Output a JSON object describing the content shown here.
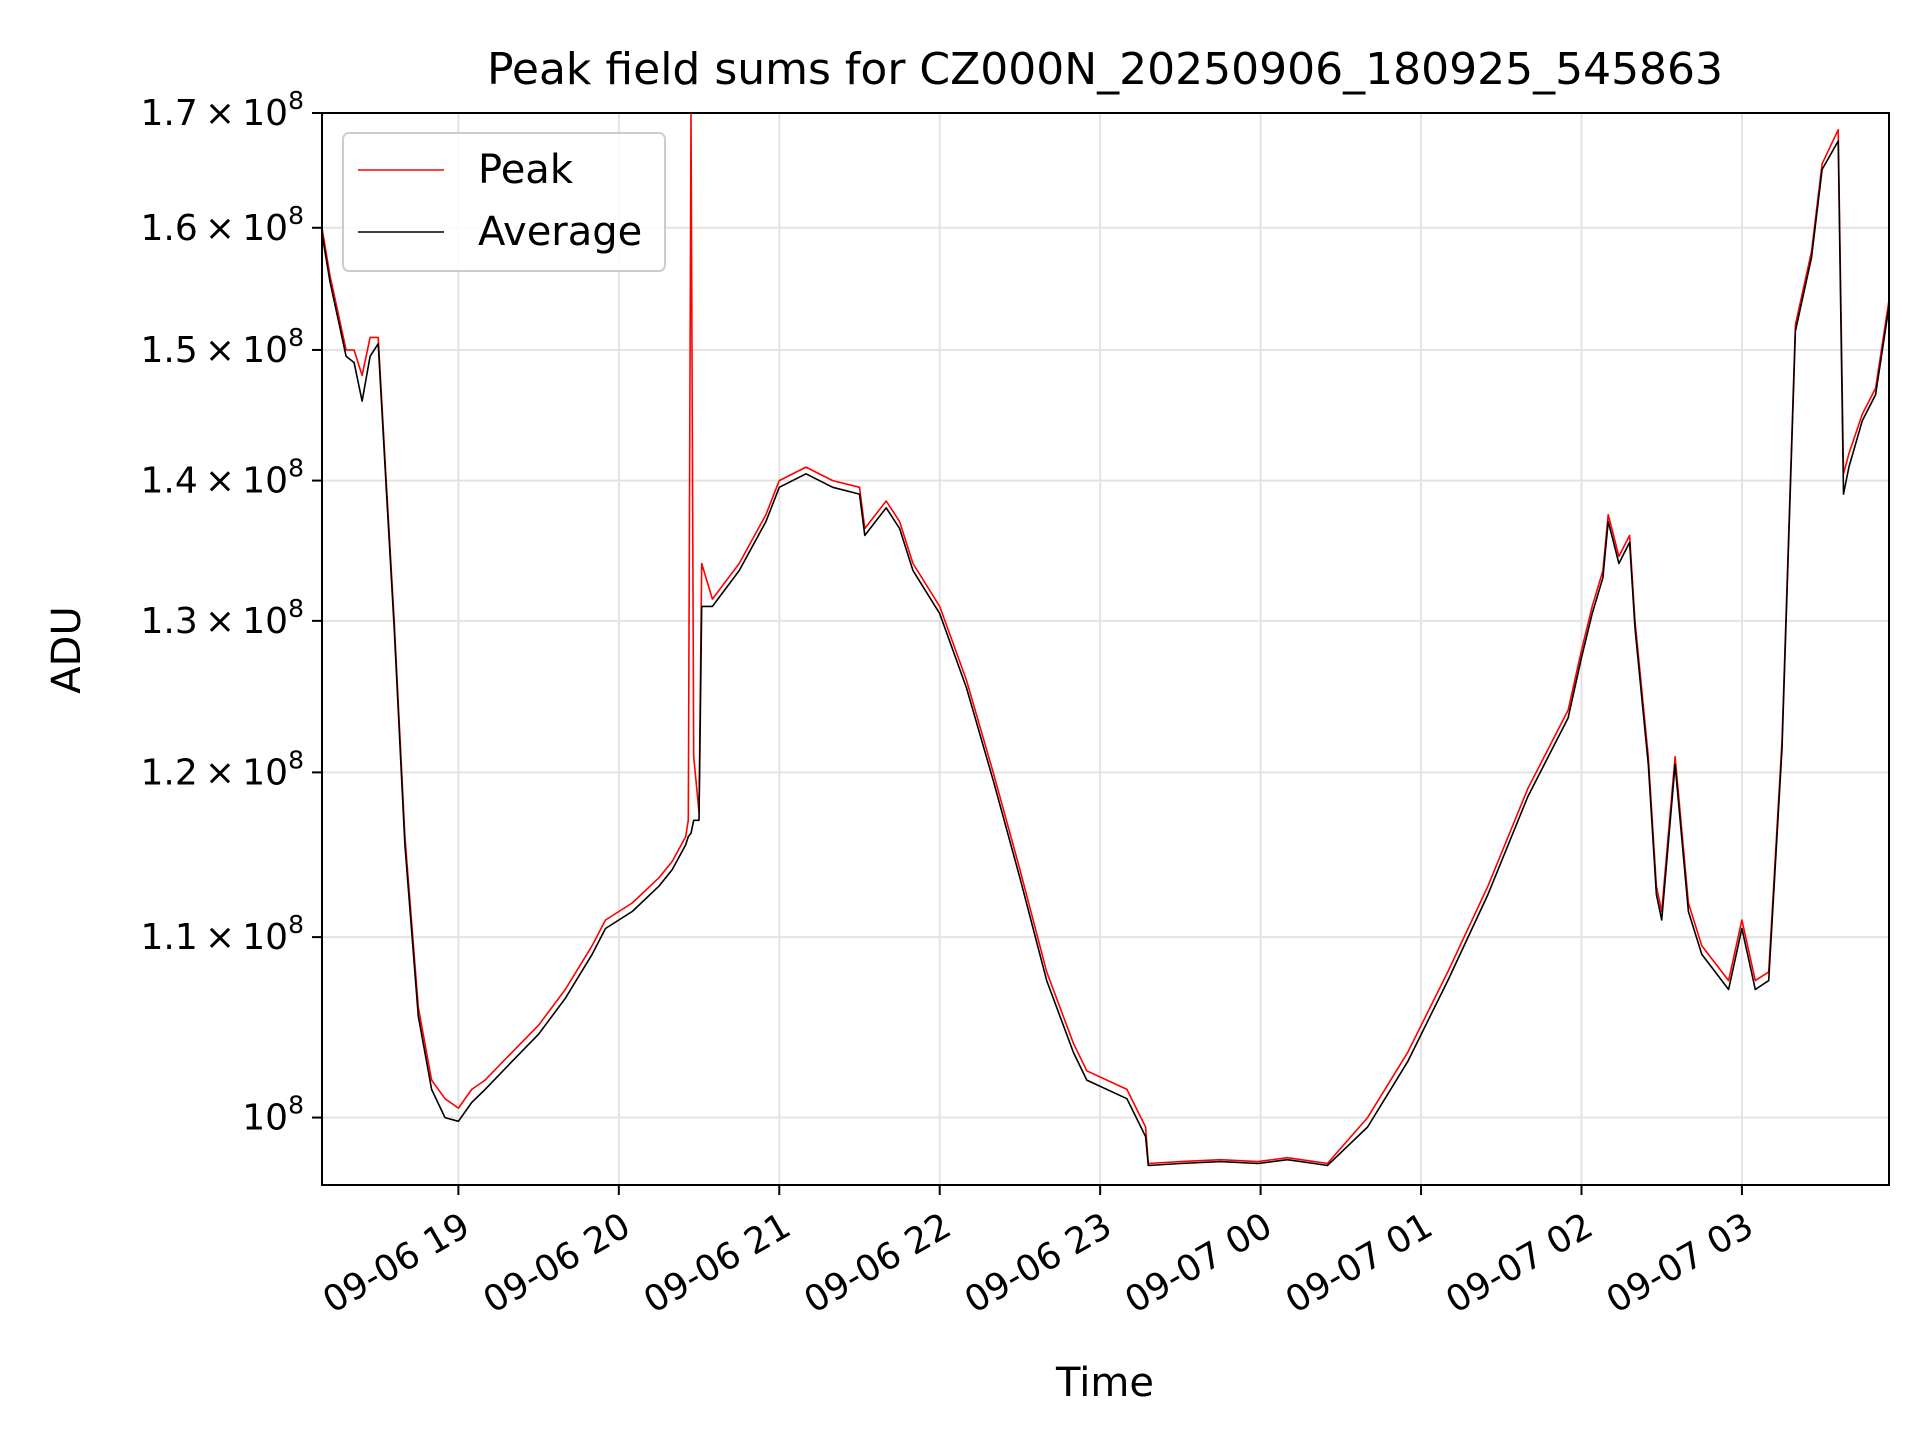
{
  "chart_data": {
    "type": "line",
    "title": "Peak field sums for CZ000N_20250906_180925_545863",
    "xlabel": "Time",
    "ylabel": "ADU",
    "yscale": "log",
    "ylim": [
      96500000,
      170000000
    ],
    "xlim": [
      "2025-09-06 18:09",
      "2025-09-07 03:55"
    ],
    "grid": true,
    "legend_position": "upper-left",
    "x_ticks": [
      "2025-09-06 19:00",
      "2025-09-06 20:00",
      "2025-09-06 21:00",
      "2025-09-06 22:00",
      "2025-09-06 23:00",
      "2025-09-07 00:00",
      "2025-09-07 01:00",
      "2025-09-07 02:00",
      "2025-09-07 03:00"
    ],
    "x_tick_labels": [
      "09-06 19",
      "09-06 20",
      "09-06 21",
      "09-06 22",
      "09-06 23",
      "09-07 00",
      "09-07 01",
      "09-07 02",
      "09-07 03"
    ],
    "y_ticks": [
      100000000,
      110000000,
      120000000,
      130000000,
      140000000,
      150000000,
      160000000,
      170000000
    ],
    "y_tick_labels": [
      {
        "mant": "",
        "exp": "8"
      },
      {
        "mant": "1.1",
        "exp": "8"
      },
      {
        "mant": "1.2",
        "exp": "8"
      },
      {
        "mant": "1.3",
        "exp": "8"
      },
      {
        "mant": "1.4",
        "exp": "8"
      },
      {
        "mant": "1.5",
        "exp": "8"
      },
      {
        "mant": "1.6",
        "exp": "8"
      },
      {
        "mant": "1.7",
        "exp": "8"
      }
    ],
    "series": [
      {
        "name": "Peak",
        "color": "#ff0000",
        "x": [
          "2025-09-06 18:09",
          "2025-09-06 18:12",
          "2025-09-06 18:15",
          "2025-09-06 18:18",
          "2025-09-06 18:21",
          "2025-09-06 18:24",
          "2025-09-06 18:27",
          "2025-09-06 18:30",
          "2025-09-06 18:33",
          "2025-09-06 18:36",
          "2025-09-06 18:40",
          "2025-09-06 18:45",
          "2025-09-06 18:50",
          "2025-09-06 18:55",
          "2025-09-06 19:00",
          "2025-09-06 19:05",
          "2025-09-06 19:10",
          "2025-09-06 19:20",
          "2025-09-06 19:30",
          "2025-09-06 19:40",
          "2025-09-06 19:50",
          "2025-09-06 19:55",
          "2025-09-06 20:05",
          "2025-09-06 20:15",
          "2025-09-06 20:20",
          "2025-09-06 20:25",
          "2025-09-06 20:26",
          "2025-09-06 20:27",
          "2025-09-06 20:28",
          "2025-09-06 20:30",
          "2025-09-06 20:31",
          "2025-09-06 20:35",
          "2025-09-06 20:45",
          "2025-09-06 20:55",
          "2025-09-06 21:00",
          "2025-09-06 21:10",
          "2025-09-06 21:20",
          "2025-09-06 21:30",
          "2025-09-06 21:32",
          "2025-09-06 21:40",
          "2025-09-06 21:45",
          "2025-09-06 21:50",
          "2025-09-06 22:00",
          "2025-09-06 22:10",
          "2025-09-06 22:20",
          "2025-09-06 22:30",
          "2025-09-06 22:40",
          "2025-09-06 22:50",
          "2025-09-06 22:55",
          "2025-09-06 23:10",
          "2025-09-06 23:17",
          "2025-09-06 23:18",
          "2025-09-06 23:30",
          "2025-09-06 23:45",
          "2025-09-06 23:59",
          "2025-09-07 00:10",
          "2025-09-07 00:20",
          "2025-09-07 00:25",
          "2025-09-07 00:40",
          "2025-09-07 00:55",
          "2025-09-07 01:10",
          "2025-09-07 01:25",
          "2025-09-07 01:40",
          "2025-09-07 01:55",
          "2025-09-07 02:00",
          "2025-09-07 02:04",
          "2025-09-07 02:08",
          "2025-09-07 02:10",
          "2025-09-07 02:12",
          "2025-09-07 02:14",
          "2025-09-07 02:18",
          "2025-09-07 02:20",
          "2025-09-07 02:25",
          "2025-09-07 02:28",
          "2025-09-07 02:30",
          "2025-09-07 02:35",
          "2025-09-07 02:40",
          "2025-09-07 02:45",
          "2025-09-07 02:50",
          "2025-09-07 02:55",
          "2025-09-07 03:00",
          "2025-09-07 03:05",
          "2025-09-07 03:10",
          "2025-09-07 03:15",
          "2025-09-07 03:20",
          "2025-09-07 03:26",
          "2025-09-07 03:30",
          "2025-09-07 03:36",
          "2025-09-07 03:38",
          "2025-09-07 03:40",
          "2025-09-07 03:45",
          "2025-09-07 03:50",
          "2025-09-07 03:55"
        ],
        "y": [
          160000000,
          156000000,
          153000000,
          150000000,
          150000000,
          148000000,
          151000000,
          151000000,
          140000000,
          130000000,
          116000000,
          106000000,
          102000000,
          101000000,
          100500000,
          101500000,
          102000000,
          103500000,
          105000000,
          107000000,
          109500000,
          111000000,
          112000000,
          113500000,
          114500000,
          116000000,
          117000000,
          170000000,
          121000000,
          117500000,
          134000000,
          131500000,
          134000000,
          137500000,
          140000000,
          141000000,
          140000000,
          139500000,
          136500000,
          138500000,
          137000000,
          134000000,
          131000000,
          126000000,
          120000000,
          114000000,
          108000000,
          104000000,
          102500000,
          101500000,
          99500000,
          97600000,
          97700000,
          97800000,
          97700000,
          97900000,
          97700000,
          97600000,
          100000000,
          103500000,
          108000000,
          113000000,
          119000000,
          124000000,
          128000000,
          131000000,
          133500000,
          137500000,
          136000000,
          134500000,
          136000000,
          130000000,
          121000000,
          113000000,
          111500000,
          121000000,
          112000000,
          109500000,
          108500000,
          107500000,
          111000000,
          107500000,
          108000000,
          122000000,
          152000000,
          158000000,
          165500000,
          168500000,
          140500000,
          142000000,
          145000000,
          147000000,
          154000000
        ]
      },
      {
        "name": "Average",
        "color": "#000000",
        "x": [
          "2025-09-06 18:09",
          "2025-09-06 18:12",
          "2025-09-06 18:15",
          "2025-09-06 18:18",
          "2025-09-06 18:21",
          "2025-09-06 18:24",
          "2025-09-06 18:27",
          "2025-09-06 18:30",
          "2025-09-06 18:33",
          "2025-09-06 18:36",
          "2025-09-06 18:40",
          "2025-09-06 18:45",
          "2025-09-06 18:50",
          "2025-09-06 18:55",
          "2025-09-06 19:00",
          "2025-09-06 19:05",
          "2025-09-06 19:10",
          "2025-09-06 19:20",
          "2025-09-06 19:30",
          "2025-09-06 19:40",
          "2025-09-06 19:50",
          "2025-09-06 19:55",
          "2025-09-06 20:05",
          "2025-09-06 20:15",
          "2025-09-06 20:20",
          "2025-09-06 20:25",
          "2025-09-06 20:26",
          "2025-09-06 20:27",
          "2025-09-06 20:28",
          "2025-09-06 20:30",
          "2025-09-06 20:31",
          "2025-09-06 20:35",
          "2025-09-06 20:45",
          "2025-09-06 20:55",
          "2025-09-06 21:00",
          "2025-09-06 21:10",
          "2025-09-06 21:20",
          "2025-09-06 21:30",
          "2025-09-06 21:32",
          "2025-09-06 21:40",
          "2025-09-06 21:45",
          "2025-09-06 21:50",
          "2025-09-06 22:00",
          "2025-09-06 22:10",
          "2025-09-06 22:20",
          "2025-09-06 22:30",
          "2025-09-06 22:40",
          "2025-09-06 22:50",
          "2025-09-06 22:55",
          "2025-09-06 23:10",
          "2025-09-06 23:17",
          "2025-09-06 23:18",
          "2025-09-06 23:30",
          "2025-09-06 23:45",
          "2025-09-06 23:59",
          "2025-09-07 00:10",
          "2025-09-07 00:20",
          "2025-09-07 00:25",
          "2025-09-07 00:40",
          "2025-09-07 00:55",
          "2025-09-07 01:10",
          "2025-09-07 01:25",
          "2025-09-07 01:40",
          "2025-09-07 01:55",
          "2025-09-07 02:00",
          "2025-09-07 02:04",
          "2025-09-07 02:08",
          "2025-09-07 02:10",
          "2025-09-07 02:12",
          "2025-09-07 02:14",
          "2025-09-07 02:18",
          "2025-09-07 02:20",
          "2025-09-07 02:25",
          "2025-09-07 02:28",
          "2025-09-07 02:30",
          "2025-09-07 02:35",
          "2025-09-07 02:40",
          "2025-09-07 02:45",
          "2025-09-07 02:50",
          "2025-09-07 02:55",
          "2025-09-07 03:00",
          "2025-09-07 03:05",
          "2025-09-07 03:10",
          "2025-09-07 03:15",
          "2025-09-07 03:20",
          "2025-09-07 03:26",
          "2025-09-07 03:30",
          "2025-09-07 03:36",
          "2025-09-07 03:38",
          "2025-09-07 03:40",
          "2025-09-07 03:45",
          "2025-09-07 03:50",
          "2025-09-07 03:55"
        ],
        "y": [
          159500000,
          155500000,
          152500000,
          149500000,
          149000000,
          146000000,
          149500000,
          150500000,
          139500000,
          129500000,
          115500000,
          105500000,
          101500000,
          100000000,
          99800000,
          100800000,
          101500000,
          103000000,
          104500000,
          106500000,
          109000000,
          110500000,
          111500000,
          113000000,
          114000000,
          115500000,
          116000000,
          116200000,
          117000000,
          117000000,
          131000000,
          131000000,
          133500000,
          137000000,
          139500000,
          140500000,
          139500000,
          139000000,
          136000000,
          138000000,
          136500000,
          133500000,
          130500000,
          125500000,
          119500000,
          113500000,
          107500000,
          103500000,
          102000000,
          101000000,
          99000000,
          97500000,
          97600000,
          97700000,
          97600000,
          97800000,
          97600000,
          97500000,
          99500000,
          103000000,
          107500000,
          112500000,
          118500000,
          123500000,
          127500000,
          130500000,
          133000000,
          137000000,
          135500000,
          134000000,
          135500000,
          129500000,
          120500000,
          112500000,
          111000000,
          120500000,
          111500000,
          109000000,
          108000000,
          107000000,
          110500000,
          107000000,
          107500000,
          121500000,
          151500000,
          157500000,
          165000000,
          167500000,
          139000000,
          141000000,
          144500000,
          146500000,
          153500000
        ]
      }
    ]
  }
}
